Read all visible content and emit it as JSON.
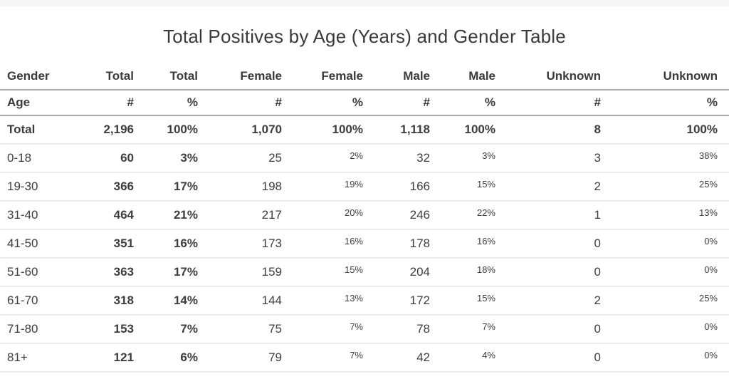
{
  "page": {
    "title": "Total Positives by Age (Years) and Gender Table"
  },
  "table": {
    "header_row1": [
      "Gender",
      "Total",
      "Total",
      "Female",
      "Female",
      "Male",
      "Male",
      "Unknown",
      "Unknown"
    ],
    "header_row2": [
      "Age",
      "#",
      "%",
      "#",
      "%",
      "#",
      "%",
      "#",
      "%"
    ],
    "rows": [
      {
        "is_total": true,
        "cells": [
          "Total",
          "2,196",
          "100%",
          "1,070",
          "100%",
          "1,118",
          "100%",
          "8",
          "100%"
        ]
      },
      {
        "is_total": false,
        "cells": [
          "0-18",
          "60",
          "3%",
          "25",
          "2%",
          "32",
          "3%",
          "3",
          "38%"
        ]
      },
      {
        "is_total": false,
        "cells": [
          "19-30",
          "366",
          "17%",
          "198",
          "19%",
          "166",
          "15%",
          "2",
          "25%"
        ]
      },
      {
        "is_total": false,
        "cells": [
          "31-40",
          "464",
          "21%",
          "217",
          "20%",
          "246",
          "22%",
          "1",
          "13%"
        ]
      },
      {
        "is_total": false,
        "cells": [
          "41-50",
          "351",
          "16%",
          "173",
          "16%",
          "178",
          "16%",
          "0",
          "0%"
        ]
      },
      {
        "is_total": false,
        "cells": [
          "51-60",
          "363",
          "17%",
          "159",
          "15%",
          "204",
          "18%",
          "0",
          "0%"
        ]
      },
      {
        "is_total": false,
        "cells": [
          "61-70",
          "318",
          "14%",
          "144",
          "13%",
          "172",
          "15%",
          "2",
          "25%"
        ]
      },
      {
        "is_total": false,
        "cells": [
          "71-80",
          "153",
          "7%",
          "75",
          "7%",
          "78",
          "7%",
          "0",
          "0%"
        ]
      },
      {
        "is_total": false,
        "cells": [
          "81+",
          "121",
          "6%",
          "79",
          "7%",
          "42",
          "4%",
          "0",
          "0%"
        ]
      }
    ]
  },
  "colors": {
    "text": "#3d3d3d",
    "header_rule": "#a8a8a8",
    "row_rule": "#ebebeb",
    "top_strip": "#f6f6f7",
    "background": "#ffffff"
  },
  "chart_data": {
    "type": "table",
    "title": "Total Positives by Age (Years) and Gender Table",
    "column_groups": [
      "Gender",
      "Total",
      "Total",
      "Female",
      "Female",
      "Male",
      "Male",
      "Unknown",
      "Unknown"
    ],
    "column_measures": [
      "Age",
      "#",
      "%",
      "#",
      "%",
      "#",
      "%",
      "#",
      "%"
    ],
    "rows": [
      {
        "age": "Total",
        "total_n": 2196,
        "total_pct": 100,
        "female_n": 1070,
        "female_pct": 100,
        "male_n": 1118,
        "male_pct": 100,
        "unknown_n": 8,
        "unknown_pct": 100
      },
      {
        "age": "0-18",
        "total_n": 60,
        "total_pct": 3,
        "female_n": 25,
        "female_pct": 2,
        "male_n": 32,
        "male_pct": 3,
        "unknown_n": 3,
        "unknown_pct": 38
      },
      {
        "age": "19-30",
        "total_n": 366,
        "total_pct": 17,
        "female_n": 198,
        "female_pct": 19,
        "male_n": 166,
        "male_pct": 15,
        "unknown_n": 2,
        "unknown_pct": 25
      },
      {
        "age": "31-40",
        "total_n": 464,
        "total_pct": 21,
        "female_n": 217,
        "female_pct": 20,
        "male_n": 246,
        "male_pct": 22,
        "unknown_n": 1,
        "unknown_pct": 13
      },
      {
        "age": "41-50",
        "total_n": 351,
        "total_pct": 16,
        "female_n": 173,
        "female_pct": 16,
        "male_n": 178,
        "male_pct": 16,
        "unknown_n": 0,
        "unknown_pct": 0
      },
      {
        "age": "51-60",
        "total_n": 363,
        "total_pct": 17,
        "female_n": 159,
        "female_pct": 15,
        "male_n": 204,
        "male_pct": 18,
        "unknown_n": 0,
        "unknown_pct": 0
      },
      {
        "age": "61-70",
        "total_n": 318,
        "total_pct": 14,
        "female_n": 144,
        "female_pct": 13,
        "male_n": 172,
        "male_pct": 15,
        "unknown_n": 2,
        "unknown_pct": 25
      },
      {
        "age": "71-80",
        "total_n": 153,
        "total_pct": 7,
        "female_n": 75,
        "female_pct": 7,
        "male_n": 78,
        "male_pct": 7,
        "unknown_n": 0,
        "unknown_pct": 0
      },
      {
        "age": "81+",
        "total_n": 121,
        "total_pct": 6,
        "female_n": 79,
        "female_pct": 7,
        "male_n": 42,
        "male_pct": 4,
        "unknown_n": 0,
        "unknown_pct": 0
      }
    ]
  }
}
